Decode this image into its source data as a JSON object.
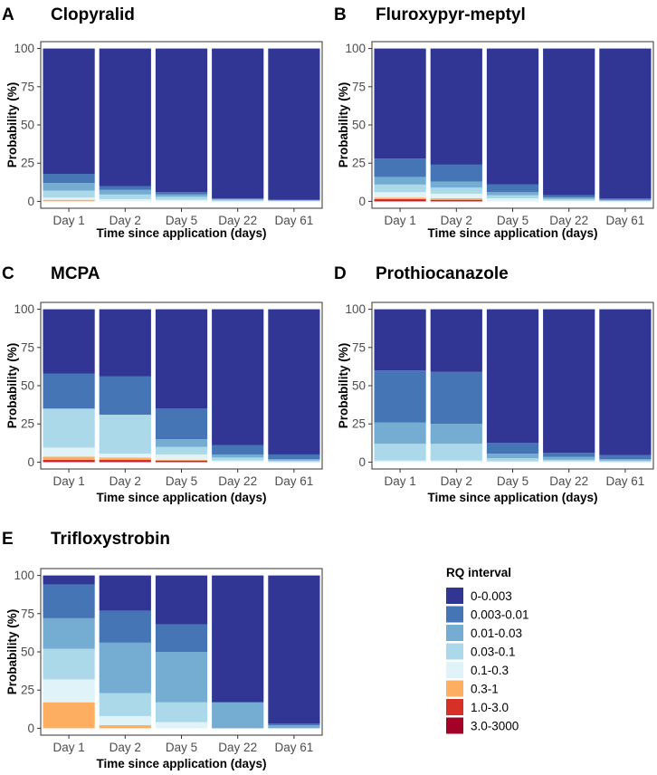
{
  "chart_data": [
    {
      "panel": "A",
      "type": "bar",
      "stacked": true,
      "title": "Clopyralid",
      "xlabel": "Time since application (days)",
      "ylabel": "Probability (%)",
      "ylim": [
        0,
        100
      ],
      "yticks": [
        0,
        25,
        50,
        75,
        100
      ],
      "categories": [
        "Day 1",
        "Day 2",
        "Day 5",
        "Day 22",
        "Day 61"
      ],
      "series": [
        {
          "name": "3.0-3000",
          "values": [
            0,
            0,
            0,
            0,
            0
          ]
        },
        {
          "name": "1.0-3.0",
          "values": [
            0,
            0,
            0,
            0,
            0
          ]
        },
        {
          "name": "0.3-1",
          "values": [
            1,
            0,
            0,
            0,
            0
          ]
        },
        {
          "name": "0.1-0.3",
          "values": [
            1.5,
            1.5,
            1,
            0,
            0
          ]
        },
        {
          "name": "0.03-0.1",
          "values": [
            4.5,
            3,
            2,
            1,
            0.5
          ]
        },
        {
          "name": "0.01-0.03",
          "values": [
            5,
            3,
            1.5,
            0.5,
            0.3
          ]
        },
        {
          "name": "0.003-0.01",
          "values": [
            6,
            2.5,
            1.5,
            0.5,
            0.2
          ]
        },
        {
          "name": "0-0.003",
          "values": [
            82,
            90,
            94,
            98,
            99
          ]
        }
      ]
    },
    {
      "panel": "B",
      "type": "bar",
      "stacked": true,
      "title": "Fluroxypyr-meptyl",
      "xlabel": "Time since application (days)",
      "ylabel": "Probability (%)",
      "ylim": [
        0,
        100
      ],
      "yticks": [
        0,
        25,
        50,
        75,
        100
      ],
      "categories": [
        "Day 1",
        "Day 2",
        "Day 5",
        "Day 22",
        "Day 61"
      ],
      "series": [
        {
          "name": "3.0-3000",
          "values": [
            0.5,
            0.5,
            0,
            0,
            0
          ]
        },
        {
          "name": "1.0-3.0",
          "values": [
            1,
            0.5,
            0,
            0,
            0
          ]
        },
        {
          "name": "0.3-1",
          "values": [
            1,
            1,
            0,
            0,
            0
          ]
        },
        {
          "name": "0.1-0.3",
          "values": [
            3.5,
            3,
            2,
            0.5,
            0
          ]
        },
        {
          "name": "0.03-0.1",
          "values": [
            5,
            4,
            2,
            1,
            0.5
          ]
        },
        {
          "name": "0.01-0.03",
          "values": [
            5,
            4,
            2,
            1,
            0.5
          ]
        },
        {
          "name": "0.003-0.01",
          "values": [
            12,
            11,
            5,
            1.5,
            1
          ]
        },
        {
          "name": "0-0.003",
          "values": [
            72,
            76,
            89,
            96,
            98
          ]
        }
      ]
    },
    {
      "panel": "C",
      "type": "bar",
      "stacked": true,
      "title": "MCPA",
      "xlabel": "Time since application (days)",
      "ylabel": "Probability (%)",
      "ylim": [
        0,
        100
      ],
      "yticks": [
        0,
        25,
        50,
        75,
        100
      ],
      "categories": [
        "Day 1",
        "Day 2",
        "Day 5",
        "Day 22",
        "Day 61"
      ],
      "series": [
        {
          "name": "3.0-3000",
          "values": [
            0.5,
            0.5,
            0.5,
            0,
            0
          ]
        },
        {
          "name": "1.0-3.0",
          "values": [
            1,
            1,
            0.5,
            0,
            0
          ]
        },
        {
          "name": "0.3-1",
          "values": [
            2,
            1.5,
            0.5,
            0,
            0
          ]
        },
        {
          "name": "0.1-0.3",
          "values": [
            6,
            2.5,
            3.5,
            1,
            0
          ]
        },
        {
          "name": "0.03-0.1",
          "values": [
            25.5,
            25.5,
            5,
            2,
            1
          ]
        },
        {
          "name": "0.01-0.03",
          "values": [
            0,
            0,
            5,
            2,
            1
          ]
        },
        {
          "name": "0.003-0.01",
          "values": [
            23,
            25,
            20,
            6,
            3
          ]
        },
        {
          "name": "0-0.003",
          "values": [
            42,
            44,
            65,
            89,
            95
          ]
        }
      ]
    },
    {
      "panel": "D",
      "type": "bar",
      "stacked": true,
      "title": "Prothiocanazole",
      "xlabel": "Time since application (days)",
      "ylabel": "Probability (%)",
      "ylim": [
        0,
        100
      ],
      "yticks": [
        0,
        25,
        50,
        75,
        100
      ],
      "categories": [
        "Day 1",
        "Day 2",
        "Day 5",
        "Day 22",
        "Day 61"
      ],
      "series": [
        {
          "name": "3.0-3000",
          "values": [
            0,
            0,
            0,
            0,
            0
          ]
        },
        {
          "name": "1.0-3.0",
          "values": [
            0,
            0,
            0,
            0,
            0
          ]
        },
        {
          "name": "0.3-1",
          "values": [
            0,
            0,
            0,
            0,
            0
          ]
        },
        {
          "name": "0.1-0.3",
          "values": [
            1,
            1,
            0.5,
            0.5,
            0
          ]
        },
        {
          "name": "0.03-0.1",
          "values": [
            11,
            11,
            2,
            1,
            1
          ]
        },
        {
          "name": "0.01-0.03",
          "values": [
            14,
            13,
            3,
            2,
            1
          ]
        },
        {
          "name": "0.003-0.01",
          "values": [
            34,
            34,
            7,
            2.5,
            2.5
          ]
        },
        {
          "name": "0-0.003",
          "values": [
            40,
            41,
            87.5,
            94,
            95.5
          ]
        }
      ]
    },
    {
      "panel": "E",
      "type": "bar",
      "stacked": true,
      "title": "Trifloxystrobin",
      "xlabel": "Time since application (days)",
      "ylabel": "Probability (%)",
      "ylim": [
        0,
        100
      ],
      "yticks": [
        0,
        25,
        50,
        75,
        100
      ],
      "categories": [
        "Day 1",
        "Day 2",
        "Day 5",
        "Day 22",
        "Day 61"
      ],
      "series": [
        {
          "name": "3.0-3000",
          "values": [
            0,
            0,
            0,
            0,
            0
          ]
        },
        {
          "name": "1.0-3.0",
          "values": [
            0,
            0,
            0,
            0,
            0
          ]
        },
        {
          "name": "0.3-1",
          "values": [
            17,
            2,
            0,
            0,
            0
          ]
        },
        {
          "name": "0.1-0.3",
          "values": [
            15,
            6,
            4,
            0,
            0
          ]
        },
        {
          "name": "0.03-0.1",
          "values": [
            20,
            15,
            13,
            0,
            0
          ]
        },
        {
          "name": "0.01-0.03",
          "values": [
            20,
            33,
            33,
            17,
            2
          ]
        },
        {
          "name": "0.003-0.01",
          "values": [
            22,
            21,
            18,
            0,
            1
          ]
        },
        {
          "name": "0-0.003",
          "values": [
            6,
            23,
            32,
            83,
            97
          ]
        }
      ]
    }
  ],
  "legend": {
    "title": "RQ interval",
    "entries": [
      {
        "label": "0-0.003",
        "color": "#313695"
      },
      {
        "label": "0.003-0.01",
        "color": "#4575b4"
      },
      {
        "label": "0.01-0.03",
        "color": "#74add1"
      },
      {
        "label": "0.03-0.1",
        "color": "#abd9e9"
      },
      {
        "label": "0.1-0.3",
        "color": "#e0f3f8"
      },
      {
        "label": "0.3-1",
        "color": "#fdae61"
      },
      {
        "label": "1.0-3.0",
        "color": "#d73027"
      },
      {
        "label": "3.0-3000",
        "color": "#a50026"
      }
    ]
  }
}
